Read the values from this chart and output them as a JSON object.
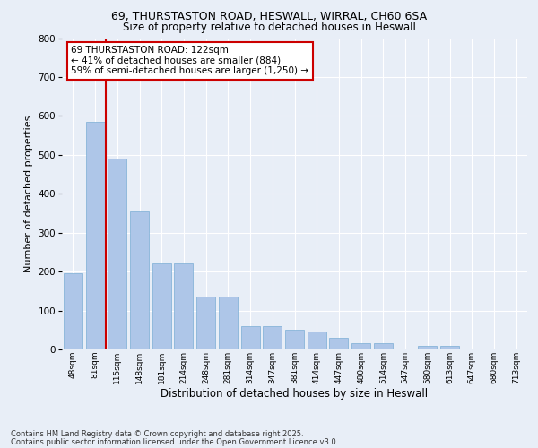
{
  "title1": "69, THURSTASTON ROAD, HESWALL, WIRRAL, CH60 6SA",
  "title2": "Size of property relative to detached houses in Heswall",
  "xlabel": "Distribution of detached houses by size in Heswall",
  "ylabel": "Number of detached properties",
  "categories": [
    "48sqm",
    "81sqm",
    "115sqm",
    "148sqm",
    "181sqm",
    "214sqm",
    "248sqm",
    "281sqm",
    "314sqm",
    "347sqm",
    "381sqm",
    "414sqm",
    "447sqm",
    "480sqm",
    "514sqm",
    "547sqm",
    "580sqm",
    "613sqm",
    "647sqm",
    "680sqm",
    "713sqm"
  ],
  "values": [
    195,
    585,
    490,
    355,
    220,
    220,
    135,
    135,
    60,
    60,
    50,
    45,
    30,
    15,
    15,
    0,
    10,
    10,
    0,
    0,
    0
  ],
  "bar_color": "#aec6e8",
  "bar_edge_color": "#7aadd4",
  "vline_color": "#cc0000",
  "annotation_text": "69 THURSTASTON ROAD: 122sqm\n← 41% of detached houses are smaller (884)\n59% of semi-detached houses are larger (1,250) →",
  "annotation_box_color": "#ffffff",
  "annotation_box_edge_color": "#cc0000",
  "background_color": "#e8eef7",
  "plot_bg_color": "#e8eef7",
  "grid_color": "#ffffff",
  "ylim": [
    0,
    800
  ],
  "yticks": [
    0,
    100,
    200,
    300,
    400,
    500,
    600,
    700,
    800
  ],
  "footer1": "Contains HM Land Registry data © Crown copyright and database right 2025.",
  "footer2": "Contains public sector information licensed under the Open Government Licence v3.0."
}
